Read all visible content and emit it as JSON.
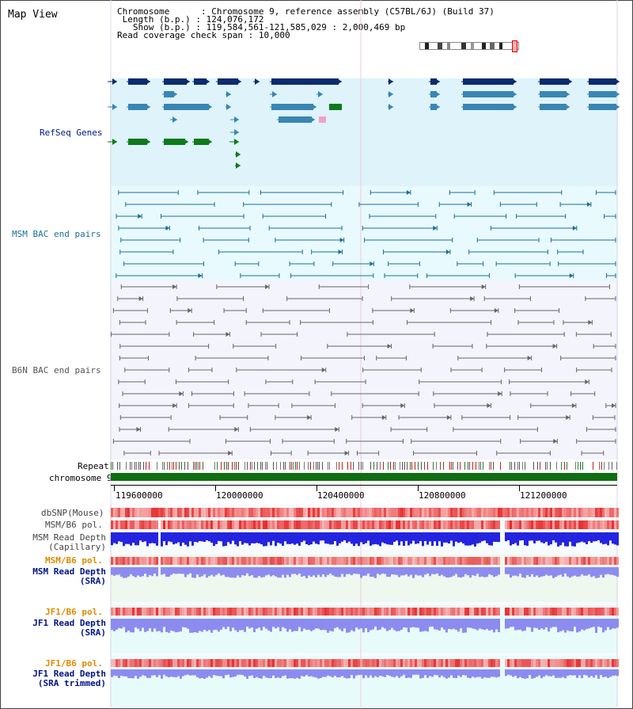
{
  "header": {
    "title": "Map View",
    "chromosome_key": "Chromosome",
    "chromosome_value": "Chromosome 9, reference assembly (C57BL/6J) (Build 37)",
    "length_key": "Length (b.p.)",
    "length_value": "124,076,172",
    "show_key": "Show (b.p.)",
    "show_value": "119,584,561-121,585,029 : 2,000,469 bp",
    "span_key": "Read coverage check span",
    "span_value": "10,000"
  },
  "tracks": {
    "refseq": "RefSeq Genes",
    "msm_bac": "MSM BAC end pairs",
    "b6n_bac": "B6N BAC end pairs",
    "repeat": "Repeat",
    "chromosome": "chromosome 9",
    "dbsnp": "dbSNP(Mouse)",
    "msm_b6_pol": "MSM/B6 pol.",
    "msm_depth_cap_1": "MSM Read Depth",
    "msm_depth_cap_2": "(Capillary)",
    "msm_b6_pol_2": "MSM/B6 pol.",
    "msm_depth_sra_1": "MSM Read Depth",
    "msm_depth_sra_2": "(SRA)",
    "jf1_pol": "JF1/B6 pol.",
    "jf1_depth_sra_1": "JF1 Read Depth",
    "jf1_depth_sra_2": "(SRA)",
    "jf1_pol_2": "JF1/B6 pol.",
    "jf1_depth_trim_1": "JF1 Read Depth",
    "jf1_depth_trim_2": "(SRA trimmed)"
  },
  "axis": {
    "ticks": [
      "119600000",
      "120000000",
      "120400000",
      "120800000",
      "121200000"
    ]
  },
  "colors": {
    "refseq_dark": "#0a2c6e",
    "refseq_mid": "#3a86b2",
    "refseq_green": "#0e7a1c",
    "msm_bac": "#1c6f9a",
    "b6n_bac": "#666666",
    "chromosome": "#0f6e12",
    "pol_red": "#e84040",
    "depth_blue": "#2424e0",
    "depth_lilac": "#8c8cf0",
    "label_navy": "#001488",
    "label_orange": "#e08a00"
  }
}
